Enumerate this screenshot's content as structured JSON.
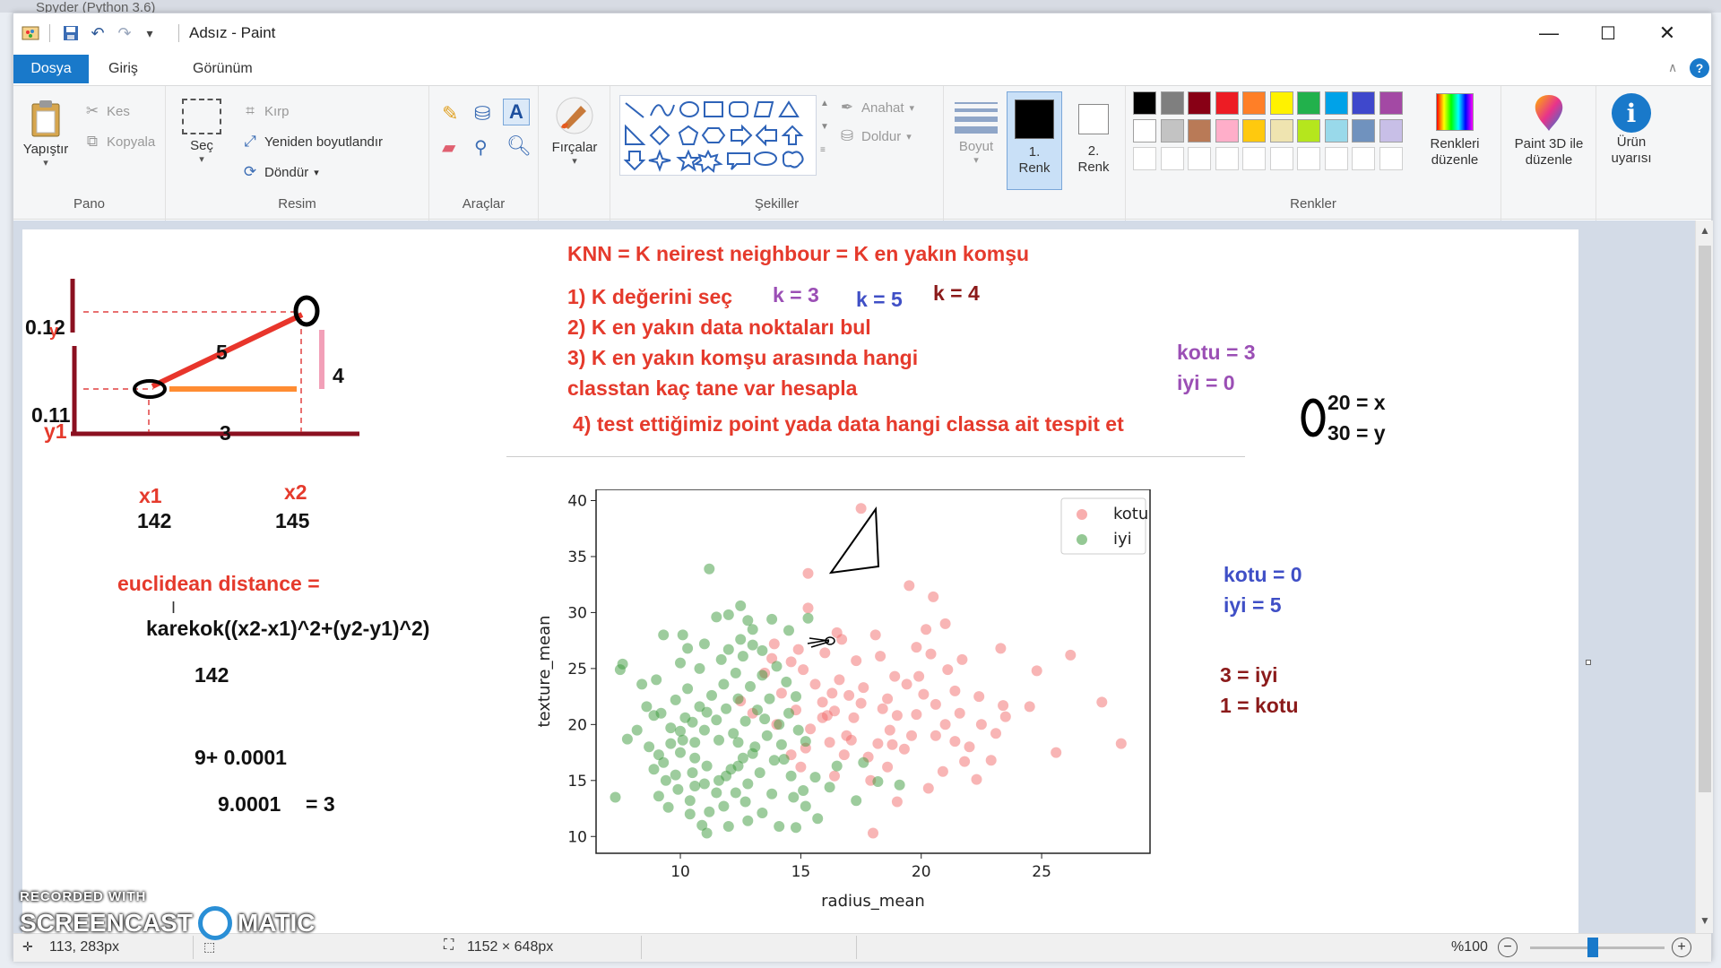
{
  "background_app": {
    "title": "Spyder (Python 3.6)"
  },
  "window": {
    "title": "Adsız - Paint",
    "controls": {
      "minimize": "—",
      "maximize": "☐",
      "close": "✕"
    }
  },
  "tabs": [
    {
      "label": "Dosya"
    },
    {
      "label": "Giriş"
    },
    {
      "label": "Görünüm"
    }
  ],
  "ribbon": {
    "pano": {
      "label": "Pano",
      "paste": "Yapıştır",
      "cut": "Kes",
      "copy": "Kopyala"
    },
    "resim": {
      "label": "Resim",
      "select": "Seç",
      "crop": "Kırp",
      "resize": "Yeniden boyutlandır",
      "rotate": "Döndür"
    },
    "araclar": {
      "label": "Araçlar"
    },
    "brushes": {
      "label": "Fırçalar"
    },
    "sekiller": {
      "label": "Şekiller",
      "outline": "Anahat",
      "fill": "Doldur"
    },
    "size": {
      "label": "Boyut"
    },
    "color1": {
      "label1": "1.",
      "label2": "Renk"
    },
    "color2": {
      "label1": "2.",
      "label2": "Renk"
    },
    "renkler": {
      "label": "Renkler",
      "edit1": "Renkleri",
      "edit2": "düzenle"
    },
    "paint3d": {
      "label1": "Paint 3D ile",
      "label2": "düzenle"
    },
    "product": {
      "label1": "Ürün",
      "label2": "uyarısı"
    },
    "palette_row1": [
      "#000000",
      "#7f7f7f",
      "#880015",
      "#ed1c24",
      "#ff7f27",
      "#fff200",
      "#22b14c",
      "#00a2e8",
      "#3f48cc",
      "#a349a4"
    ],
    "palette_row2": [
      "#ffffff",
      "#c3c3c3",
      "#b97a57",
      "#ffaec9",
      "#ffc90e",
      "#efe4b0",
      "#b5e61d",
      "#99d9ea",
      "#7092be",
      "#c8bfe7"
    ]
  },
  "canvas": {
    "diagram": {
      "y2": "0.12",
      "y1": "0.11",
      "y2_letter": "y",
      "y1_letter": "y1",
      "hyp": "5",
      "vert": "4",
      "horiz": "3",
      "x1": "x1",
      "x2": "x2",
      "x1_val": "142",
      "x2_val": "145"
    },
    "knn": {
      "title": "KNN = K neirest neighbour  = K en yakın komşu",
      "step1": "1) K  değerini seç",
      "k3": "k = 3",
      "k5": "k = 5",
      "k4": "k = 4",
      "step2": "2) K en yakın data noktaları bul",
      "step3a": "3) K en yakın komşu arasında hangi",
      "step3b": "classtan kaç tane var hesapla",
      "step4": "4) test ettiğimiz point yada data hangi classa ait tespit et"
    },
    "counts_purple": {
      "kotu": "kotu = 3",
      "iyi": "iyi = 0"
    },
    "point": {
      "x": "20 = x",
      "y": "30 = y"
    },
    "counts_blue": {
      "kotu": "kotu = 0",
      "iyi": "iyi = 5"
    },
    "counts_maroon": {
      "iyi": "3 = iyi",
      "kotu": "1 = kotu"
    },
    "euclid": {
      "label": "euclidean distance =",
      "formula": "karekok((x2-x1)^2+(y2-y1)^2)",
      "v142": "142",
      "sum": "9+ 0.0001",
      "result": "9.0001",
      "eq3": "= 3"
    }
  },
  "chart_data": {
    "type": "scatter",
    "xlabel": "radius_mean",
    "ylabel": "texture_mean",
    "xlim": [
      6.5,
      29.5
    ],
    "ylim": [
      8.5,
      41
    ],
    "xticks": [
      10,
      15,
      20,
      25
    ],
    "yticks": [
      10,
      15,
      20,
      25,
      30,
      35,
      40
    ],
    "legend_position": "top-right",
    "series": [
      {
        "name": "kotu",
        "color": "#f26b6b",
        "points": [
          [
            15.3,
            33.5
          ],
          [
            17.5,
            39.3
          ],
          [
            19.5,
            32.4
          ],
          [
            20.5,
            31.4
          ],
          [
            15.3,
            30.4
          ],
          [
            16.5,
            28.2
          ],
          [
            18.1,
            28.0
          ],
          [
            20.2,
            28.5
          ],
          [
            21.0,
            29.0
          ],
          [
            23.3,
            26.8
          ],
          [
            26.2,
            26.2
          ],
          [
            24.8,
            24.8
          ],
          [
            27.5,
            22.0
          ],
          [
            28.3,
            18.3
          ],
          [
            25.6,
            17.5
          ],
          [
            23.4,
            21.7
          ],
          [
            22.5,
            20.0
          ],
          [
            21.8,
            16.7
          ],
          [
            20.3,
            14.3
          ],
          [
            19.0,
            13.1
          ],
          [
            18.0,
            10.3
          ],
          [
            16.1,
            20.8
          ],
          [
            17.0,
            22.6
          ],
          [
            18.6,
            22.3
          ],
          [
            19.4,
            23.6
          ],
          [
            19.9,
            24.3
          ],
          [
            21.0,
            20.0
          ],
          [
            21.4,
            23.0
          ],
          [
            20.6,
            19.0
          ],
          [
            21.4,
            18.5
          ],
          [
            22.0,
            18.0
          ],
          [
            22.9,
            16.8
          ],
          [
            23.1,
            19.2
          ],
          [
            24.5,
            21.6
          ],
          [
            15.9,
            22.0
          ],
          [
            17.2,
            20.6
          ],
          [
            18.2,
            18.3
          ],
          [
            18.7,
            19.5
          ],
          [
            16.9,
            19.0
          ],
          [
            16.2,
            18.4
          ],
          [
            15.4,
            19.6
          ],
          [
            14.8,
            21.3
          ],
          [
            14.2,
            22.8
          ],
          [
            15.6,
            23.6
          ],
          [
            16.6,
            24.0
          ],
          [
            17.3,
            25.7
          ],
          [
            18.3,
            26.1
          ],
          [
            19.8,
            26.9
          ],
          [
            20.4,
            26.3
          ],
          [
            16.0,
            26.4
          ],
          [
            14.9,
            26.7
          ],
          [
            13.8,
            25.9
          ],
          [
            13.5,
            24.6
          ],
          [
            12.5,
            22.1
          ],
          [
            13.0,
            21.0
          ],
          [
            14.0,
            20.0
          ],
          [
            15.2,
            17.9
          ],
          [
            16.8,
            17.3
          ],
          [
            17.8,
            17.1
          ],
          [
            18.6,
            16.2
          ],
          [
            19.3,
            17.8
          ],
          [
            19.8,
            20.9
          ],
          [
            20.6,
            21.8
          ],
          [
            21.6,
            21.0
          ],
          [
            22.4,
            22.5
          ],
          [
            21.1,
            24.9
          ],
          [
            18.9,
            24.3
          ],
          [
            17.6,
            23.3
          ],
          [
            16.3,
            22.8
          ],
          [
            15.1,
            24.9
          ],
          [
            14.6,
            25.6
          ],
          [
            13.9,
            27.2
          ],
          [
            16.7,
            27.6
          ],
          [
            21.7,
            25.8
          ],
          [
            23.5,
            20.7
          ],
          [
            22.3,
            15.1
          ],
          [
            20.9,
            15.8
          ],
          [
            17.9,
            15.0
          ],
          [
            16.4,
            15.4
          ],
          [
            15.0,
            16.2
          ],
          [
            14.6,
            17.3
          ],
          [
            19.0,
            20.8
          ],
          [
            18.4,
            21.4
          ],
          [
            17.5,
            21.9
          ],
          [
            16.4,
            21.2
          ],
          [
            20.1,
            22.7
          ],
          [
            19.6,
            19.0
          ],
          [
            18.8,
            18.2
          ],
          [
            17.1,
            18.6
          ],
          [
            15.9,
            20.6
          ]
        ]
      },
      {
        "name": "iyi",
        "color": "#3c9a3c",
        "points": [
          [
            11.2,
            33.9
          ],
          [
            12.5,
            30.6
          ],
          [
            11.5,
            29.6
          ],
          [
            12.0,
            29.8
          ],
          [
            12.8,
            29.3
          ],
          [
            13.8,
            29.4
          ],
          [
            12.5,
            27.6
          ],
          [
            13.4,
            26.6
          ],
          [
            10.1,
            28.0
          ],
          [
            9.3,
            28.0
          ],
          [
            10.3,
            26.8
          ],
          [
            7.6,
            25.4
          ],
          [
            7.5,
            24.9
          ],
          [
            8.4,
            23.6
          ],
          [
            8.6,
            21.6
          ],
          [
            8.9,
            20.8
          ],
          [
            8.2,
            19.5
          ],
          [
            7.8,
            18.7
          ],
          [
            8.7,
            18.0
          ],
          [
            7.3,
            13.5
          ],
          [
            9.1,
            13.6
          ],
          [
            9.5,
            12.6
          ],
          [
            10.4,
            12.0
          ],
          [
            10.9,
            11.0
          ],
          [
            11.1,
            10.3
          ],
          [
            12.0,
            10.9
          ],
          [
            12.8,
            11.4
          ],
          [
            13.4,
            12.1
          ],
          [
            14.1,
            10.9
          ],
          [
            14.8,
            10.8
          ],
          [
            15.7,
            11.6
          ],
          [
            15.2,
            12.7
          ],
          [
            14.7,
            13.5
          ],
          [
            13.8,
            13.8
          ],
          [
            12.7,
            13.1
          ],
          [
            11.5,
            13.9
          ],
          [
            10.6,
            14.5
          ],
          [
            9.8,
            15.5
          ],
          [
            9.3,
            16.6
          ],
          [
            10.0,
            17.5
          ],
          [
            10.6,
            18.4
          ],
          [
            11.0,
            19.5
          ],
          [
            11.5,
            20.4
          ],
          [
            11.9,
            21.4
          ],
          [
            12.4,
            22.3
          ],
          [
            12.9,
            23.4
          ],
          [
            13.4,
            24.4
          ],
          [
            14.0,
            25.2
          ],
          [
            14.4,
            23.8
          ],
          [
            14.8,
            22.5
          ],
          [
            14.5,
            21.0
          ],
          [
            14.1,
            20.0
          ],
          [
            13.6,
            19.0
          ],
          [
            13.1,
            18.0
          ],
          [
            12.6,
            17.0
          ],
          [
            12.1,
            16.0
          ],
          [
            11.6,
            15.0
          ],
          [
            11.1,
            16.3
          ],
          [
            10.6,
            17.0
          ],
          [
            10.1,
            18.6
          ],
          [
            9.6,
            19.7
          ],
          [
            10.2,
            20.6
          ],
          [
            10.8,
            21.6
          ],
          [
            11.3,
            22.6
          ],
          [
            11.8,
            23.6
          ],
          [
            12.3,
            24.6
          ],
          [
            12.6,
            26.1
          ],
          [
            11.7,
            25.8
          ],
          [
            10.8,
            25.0
          ],
          [
            10.3,
            23.2
          ],
          [
            9.8,
            22.2
          ],
          [
            9.2,
            21.0
          ],
          [
            12.2,
            19.2
          ],
          [
            12.7,
            20.3
          ],
          [
            13.2,
            21.3
          ],
          [
            13.7,
            22.3
          ],
          [
            14.2,
            18.2
          ],
          [
            13.9,
            16.8
          ],
          [
            13.3,
            15.7
          ],
          [
            12.8,
            14.7
          ],
          [
            12.3,
            13.9
          ],
          [
            11.8,
            12.7
          ],
          [
            11.2,
            12.2
          ],
          [
            10.4,
            13.2
          ],
          [
            9.9,
            14.2
          ],
          [
            9.4,
            15.0
          ],
          [
            8.9,
            16.0
          ],
          [
            9.1,
            17.3
          ],
          [
            9.6,
            18.3
          ],
          [
            10.0,
            19.4
          ],
          [
            10.5,
            20.2
          ],
          [
            11.1,
            21.1
          ],
          [
            11.6,
            18.6
          ],
          [
            12.4,
            18.4
          ],
          [
            13.0,
            17.4
          ],
          [
            12.4,
            16.3
          ],
          [
            11.9,
            15.4
          ],
          [
            11.0,
            14.7
          ],
          [
            10.5,
            15.7
          ],
          [
            15.1,
            14.1
          ],
          [
            15.6,
            15.3
          ],
          [
            14.6,
            15.4
          ],
          [
            14.3,
            16.9
          ],
          [
            13.5,
            20.5
          ],
          [
            14.9,
            19.5
          ],
          [
            15.2,
            18.5
          ],
          [
            16.2,
            14.4
          ],
          [
            17.3,
            13.2
          ],
          [
            18.2,
            14.9
          ],
          [
            19.1,
            14.6
          ],
          [
            17.6,
            16.6
          ],
          [
            16.5,
            16.3
          ],
          [
            13.0,
            27.1
          ],
          [
            11.0,
            27.2
          ],
          [
            12.0,
            26.7
          ],
          [
            13.0,
            28.5
          ],
          [
            14.5,
            28.4
          ],
          [
            15.3,
            29.5
          ],
          [
            9.0,
            24.0
          ],
          [
            10.0,
            25.5
          ]
        ]
      }
    ]
  },
  "status": {
    "cursor": "113, 283px",
    "size": "1152 × 648px",
    "zoom": "%100",
    "watermark1": "RECORDED WITH",
    "watermark2a": "SCREENCAST",
    "watermark2b": "MATIC"
  }
}
